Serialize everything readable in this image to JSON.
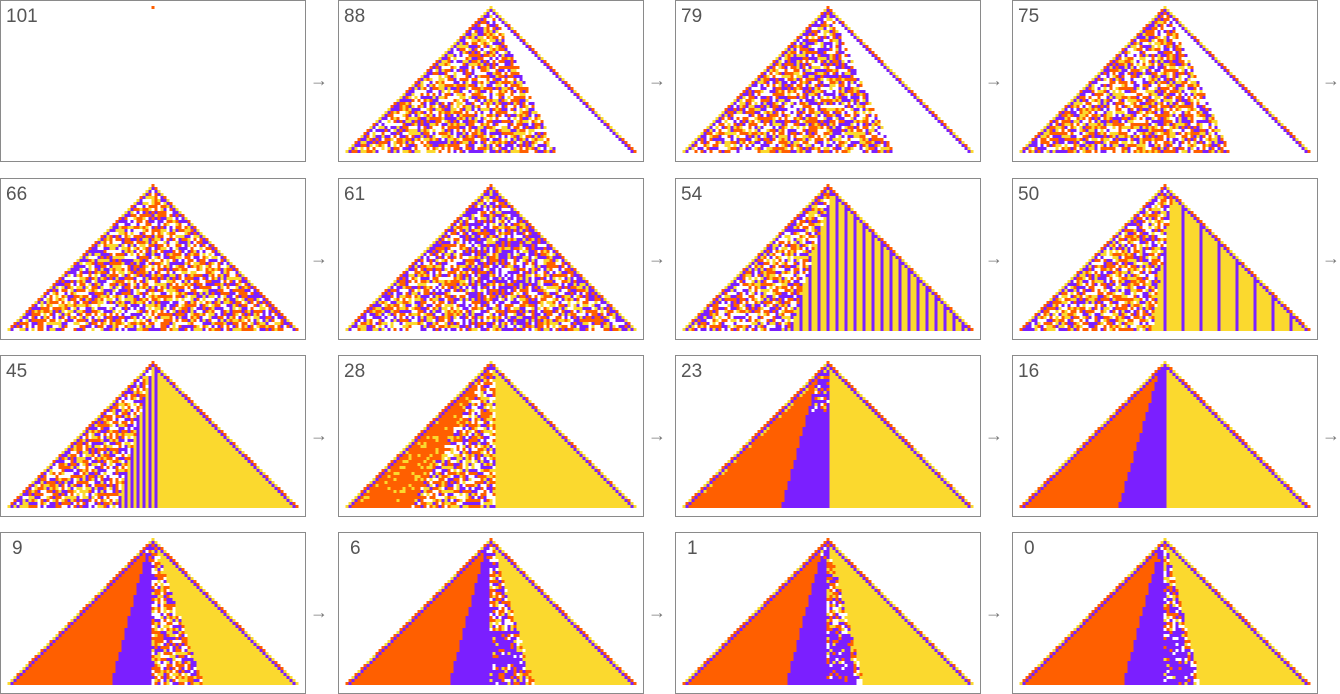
{
  "arrow": "→",
  "panels": [
    {
      "label": 101
    },
    {
      "label": 88
    },
    {
      "label": 79
    },
    {
      "label": 75
    },
    {
      "label": 66
    },
    {
      "label": 61
    },
    {
      "label": 54
    },
    {
      "label": 50
    },
    {
      "label": 45
    },
    {
      "label": 28
    },
    {
      "label": 23
    },
    {
      "label": 16
    },
    {
      "label": 9
    },
    {
      "label": 6
    },
    {
      "label": 1
    },
    {
      "label": 0
    }
  ]
}
